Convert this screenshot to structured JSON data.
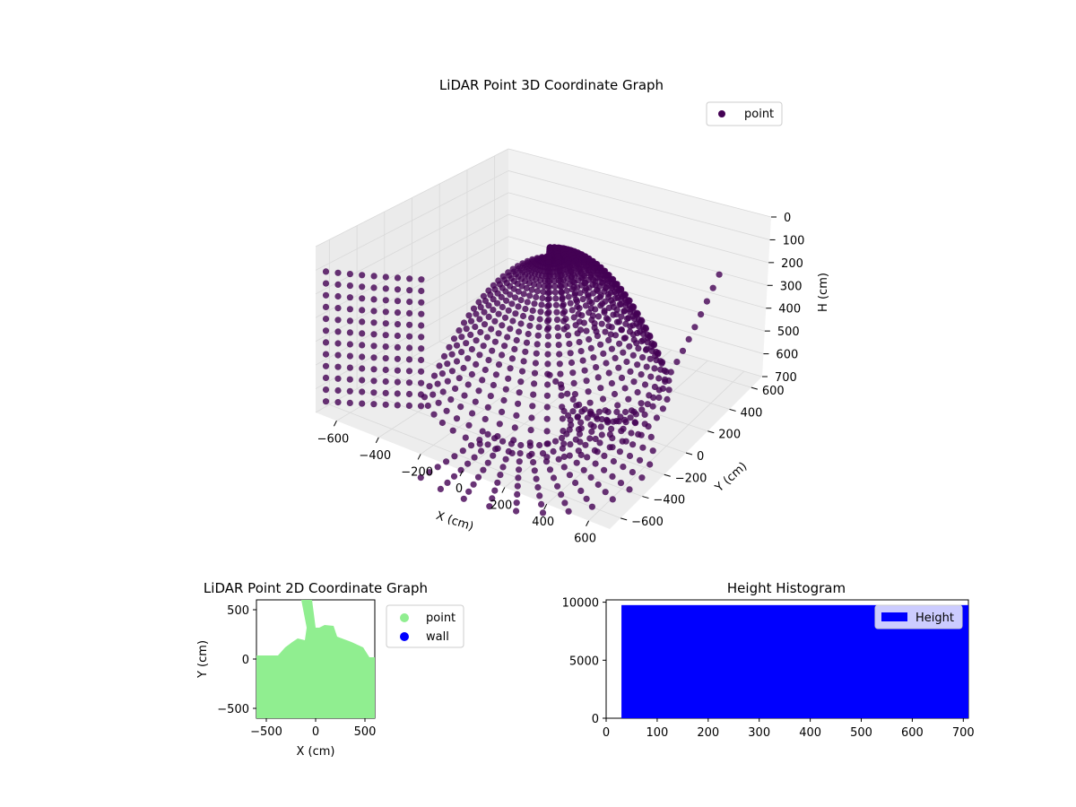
{
  "chart_data": [
    {
      "type": "scatter",
      "title": "LiDAR Point 3D Coordinate Graph",
      "xlabel": "X (cm)",
      "ylabel": "Y (cm)",
      "zlabel": "H (cm)",
      "xlim": [
        -700,
        700
      ],
      "ylim": [
        -700,
        700
      ],
      "zlim": [
        0,
        700
      ],
      "z_inverted": true,
      "x_ticks": [
        -600,
        -400,
        -200,
        0,
        200,
        400,
        600
      ],
      "x_tick_labels": [
        "−600",
        "−400",
        "−200",
        "0",
        "200",
        "400",
        "600"
      ],
      "y_ticks": [
        -600,
        -400,
        -200,
        0,
        200,
        400,
        600
      ],
      "y_tick_labels": [
        "−600",
        "−400",
        "−200",
        "0",
        "200",
        "400",
        "600"
      ],
      "z_ticks": [
        0,
        100,
        200,
        300,
        400,
        500,
        600,
        700
      ],
      "z_tick_labels": [
        "0",
        "100",
        "200",
        "300",
        "400",
        "500",
        "600",
        "700"
      ],
      "grid": true,
      "legend": [
        "point"
      ],
      "legend_position": "top-right",
      "series": [
        {
          "name": "point",
          "color": "#440154",
          "description_points": [
            {
              "x": 0,
              "y": 0,
              "h": 50
            },
            {
              "x": 0,
              "y": 0,
              "h": 100
            },
            {
              "x": 0,
              "y": 0,
              "h": 150
            },
            {
              "x": 0,
              "y": 0,
              "h": 200
            },
            {
              "x": 0,
              "y": 0,
              "h": 250
            },
            {
              "x": 0,
              "y": 0,
              "h": 300
            }
          ]
        }
      ]
    },
    {
      "type": "scatter",
      "title": "LiDAR Point 2D Coordinate Graph",
      "xlabel": "X (cm)",
      "ylabel": "Y (cm)",
      "xlim": [
        -600,
        600
      ],
      "ylim": [
        -600,
        600
      ],
      "x_ticks": [
        -500,
        0,
        500
      ],
      "x_tick_labels": [
        "−500",
        "0",
        "500"
      ],
      "y_ticks": [
        -500,
        0,
        500
      ],
      "y_tick_labels": [
        "−500",
        "0",
        "500"
      ],
      "legend": [
        "point",
        "wall"
      ],
      "legend_position": "outside-right",
      "series": [
        {
          "name": "point",
          "color": "#90ee90"
        },
        {
          "name": "wall",
          "color": "#0000ff"
        }
      ]
    },
    {
      "type": "bar",
      "title": "Height Histogram",
      "xlim": [
        0,
        710
      ],
      "ylim": [
        0,
        10200
      ],
      "x_ticks": [
        0,
        100,
        200,
        300,
        400,
        500,
        600,
        700
      ],
      "y_ticks": [
        0,
        5000,
        10000
      ],
      "legend": [
        "Height"
      ],
      "legend_position": "top-right",
      "series": [
        {
          "name": "Height",
          "color": "#0000ff",
          "bins": [
            {
              "from": 30,
              "to": 710,
              "count": 9750
            }
          ]
        }
      ]
    }
  ]
}
